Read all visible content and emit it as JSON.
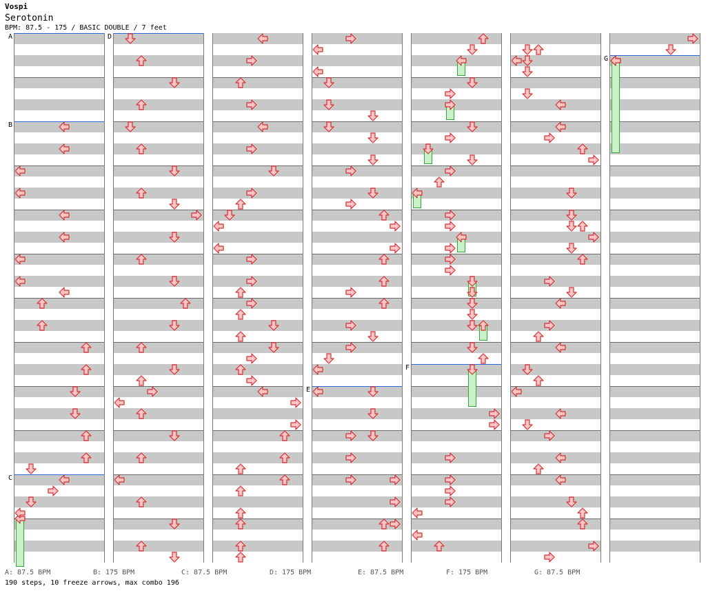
{
  "header": {
    "artist": "Vospi",
    "title": "Serotonin",
    "meta": "BPM: 87.5 - 175 / BASIC DOUBLE / 7 feet"
  },
  "markers": {
    "A": "A",
    "B": "B",
    "C": "C",
    "D": "D",
    "E": "E",
    "F": "F",
    "G": "G"
  },
  "legend": [
    "A: 87.5 BPM",
    "B: 175 BPM",
    "C: 87.5 BPM",
    "D: 175 BPM",
    "E: 87.5 BPM",
    "F: 175 BPM",
    "G: 87.5 BPM"
  ],
  "summary": "190 steps, 10 freeze arrows, max combo 196",
  "colors": {
    "arrow_fill": "#ffc4c4",
    "arrow_stroke": "#d03030",
    "freeze_fill": "#c6f2c6",
    "freeze_stroke": "#39a339",
    "bpm_line": "#2f67d6",
    "stripe": "#c8c8c8"
  },
  "icons": {
    "left": "left-arrow-icon",
    "down": "down-arrow-icon",
    "up": "up-arrow-icon",
    "right": "right-arrow-icon"
  }
}
